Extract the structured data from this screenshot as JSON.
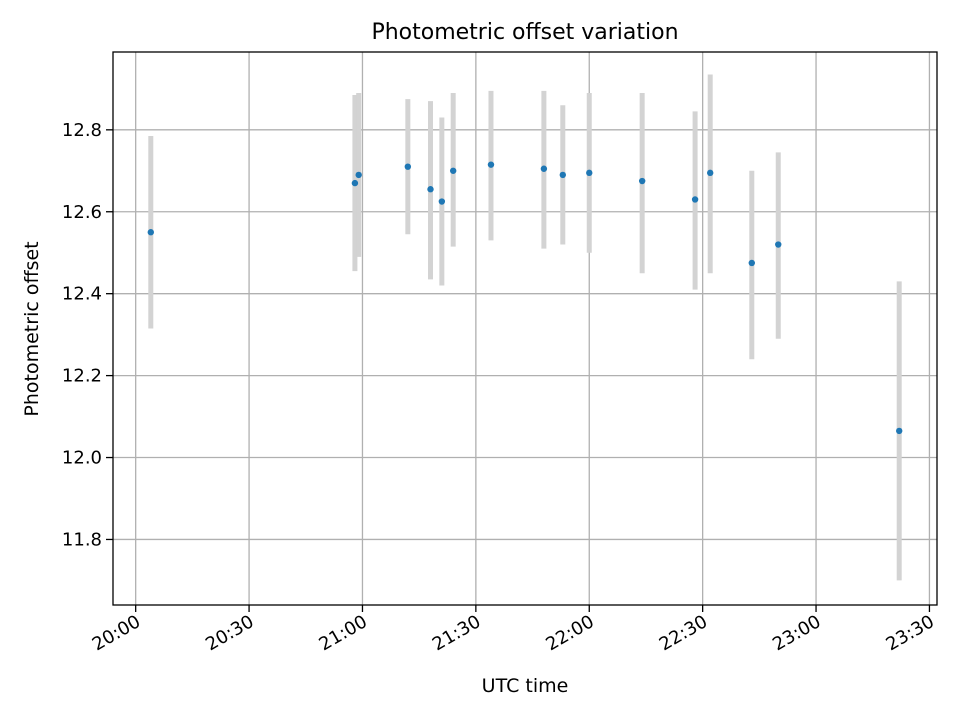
{
  "chart_data": {
    "type": "scatter",
    "title": "Photometric offset variation",
    "xlabel": "UTC time",
    "ylabel": "Photometric offset",
    "x_axis_type": "time",
    "xlim": [
      "19:54",
      "23:32"
    ],
    "ylim": [
      11.64,
      12.99
    ],
    "x_ticks": [
      "20:00",
      "20:30",
      "21:00",
      "21:30",
      "22:00",
      "22:30",
      "23:00",
      "23:30"
    ],
    "y_ticks": [
      11.8,
      12.0,
      12.2,
      12.4,
      12.6,
      12.8
    ],
    "y_tick_labels": [
      "11.8",
      "12.0",
      "12.2",
      "12.4",
      "12.6",
      "12.8"
    ],
    "grid": true,
    "legend": "none",
    "colors": {
      "point": "#1f77b4",
      "errorbar": "#d3d3d3",
      "grid": "#b0b0b0"
    },
    "series": [
      {
        "points": [
          {
            "x": "20:04",
            "y": 12.55,
            "err_low": 12.315,
            "err_high": 12.785
          },
          {
            "x": "20:58",
            "y": 12.67,
            "err_low": 12.455,
            "err_high": 12.885
          },
          {
            "x": "20:59",
            "y": 12.69,
            "err_low": 12.49,
            "err_high": 12.89
          },
          {
            "x": "21:12",
            "y": 12.71,
            "err_low": 12.545,
            "err_high": 12.875
          },
          {
            "x": "21:18",
            "y": 12.655,
            "err_low": 12.435,
            "err_high": 12.87
          },
          {
            "x": "21:21",
            "y": 12.625,
            "err_low": 12.42,
            "err_high": 12.83
          },
          {
            "x": "21:24",
            "y": 12.7,
            "err_low": 12.515,
            "err_high": 12.89
          },
          {
            "x": "21:34",
            "y": 12.715,
            "err_low": 12.53,
            "err_high": 12.895
          },
          {
            "x": "21:48",
            "y": 12.705,
            "err_low": 12.51,
            "err_high": 12.895
          },
          {
            "x": "21:53",
            "y": 12.69,
            "err_low": 12.52,
            "err_high": 12.86
          },
          {
            "x": "22:00",
            "y": 12.695,
            "err_low": 12.5,
            "err_high": 12.89
          },
          {
            "x": "22:14",
            "y": 12.675,
            "err_low": 12.45,
            "err_high": 12.89
          },
          {
            "x": "22:28",
            "y": 12.63,
            "err_low": 12.41,
            "err_high": 12.845
          },
          {
            "x": "22:32",
            "y": 12.695,
            "err_low": 12.45,
            "err_high": 12.935
          },
          {
            "x": "22:43",
            "y": 12.475,
            "err_low": 12.24,
            "err_high": 12.7
          },
          {
            "x": "22:50",
            "y": 12.52,
            "err_low": 12.29,
            "err_high": 12.745
          },
          {
            "x": "23:22",
            "y": 12.065,
            "err_low": 11.7,
            "err_high": 12.43
          }
        ]
      }
    ]
  }
}
